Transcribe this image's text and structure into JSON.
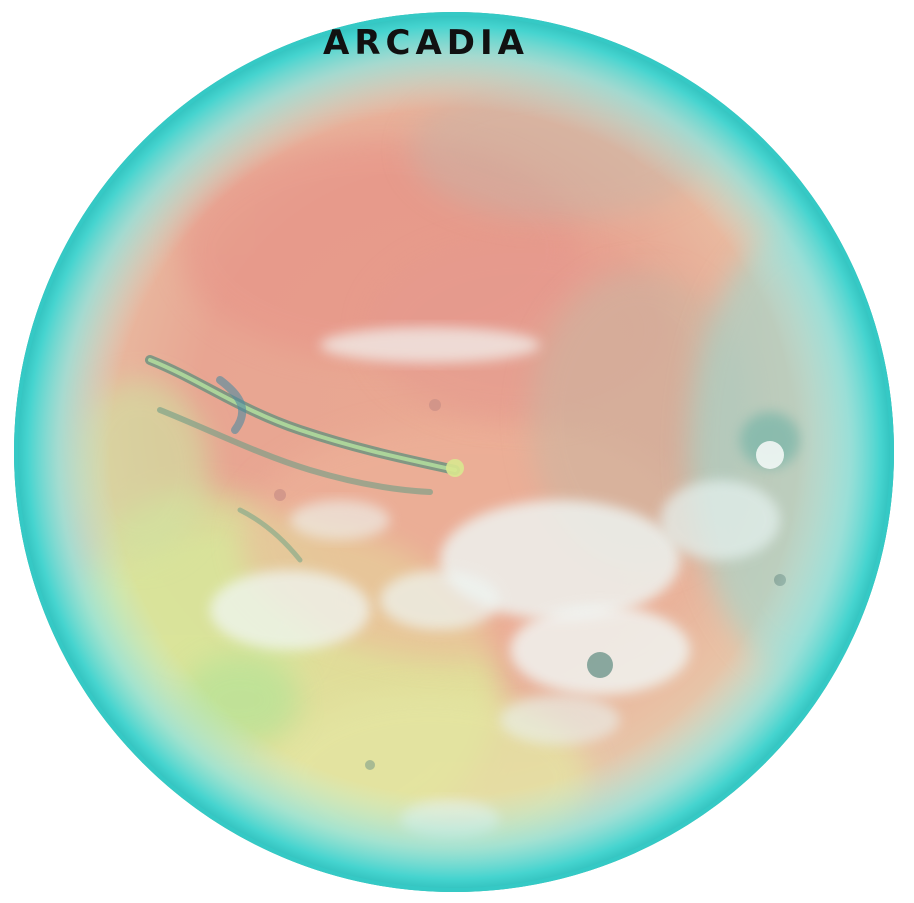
{
  "title": "ARCADIA",
  "colors": {
    "rim": "#3fd3d0",
    "atmosphere": "#9fe6e2",
    "surface_rose": "#e79a8e",
    "surface_peach": "#eeb49a",
    "surface_yellow": "#dfe69a",
    "surface_green": "#b9e296",
    "clouds": "#eef6f4",
    "canyon": "#5f8f7c",
    "title_text": "#111111"
  },
  "icons": [
    "planet-globe"
  ]
}
